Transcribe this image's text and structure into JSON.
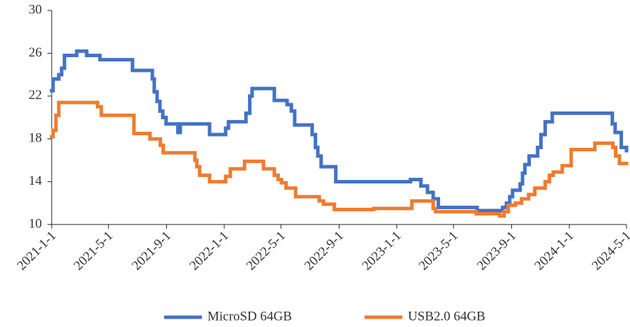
{
  "chart_data": {
    "type": "line",
    "step": "post",
    "xlim": [
      "2021-1-1",
      "2024-5-1"
    ],
    "xticks": [
      "2021-1-1",
      "2021-5-1",
      "2021-9-1",
      "2022-1-1",
      "2022-5-1",
      "2022-9-1",
      "2023-1-1",
      "2023-5-1",
      "2023-9-1",
      "2024-1-1",
      "2024-5-1"
    ],
    "ylim": [
      10,
      30
    ],
    "yticks": [
      10,
      14,
      18,
      22,
      26,
      30
    ],
    "legend": "bottom",
    "series": [
      {
        "name": "MicroSD 64GB",
        "color": "#4472c4",
        "x": [
          "2021-1-1",
          "2021-1-4",
          "2021-1-16",
          "2021-1-22",
          "2021-1-28",
          "2021-2-23",
          "2021-3-16",
          "2021-4-13",
          "2021-6-21",
          "2021-8-2",
          "2021-8-6",
          "2021-8-12",
          "2021-8-18",
          "2021-8-24",
          "2021-8-31",
          "2021-9-25",
          "2021-9-30",
          "2021-12-1",
          "2022-1-4",
          "2022-1-10",
          "2022-2-16",
          "2022-2-24",
          "2022-3-1",
          "2022-4-17",
          "2022-5-14",
          "2022-5-23",
          "2022-5-30",
          "2022-7-6",
          "2022-7-13",
          "2022-7-18",
          "2022-7-25",
          "2022-8-25",
          "2023-1-30",
          "2023-2-21",
          "2023-3-7",
          "2023-3-19",
          "2023-3-30",
          "2023-6-20",
          "2023-8-13",
          "2023-8-21",
          "2023-8-28",
          "2023-9-3",
          "2023-9-19",
          "2023-9-24",
          "2023-9-29",
          "2023-10-8",
          "2023-10-26",
          "2023-11-2",
          "2023-11-11",
          "2023-11-26",
          "2024-4-1",
          "2024-4-7",
          "2024-4-20",
          "2024-5-1"
        ],
        "values": [
          22.5,
          23.6,
          24.0,
          24.6,
          25.8,
          26.2,
          25.8,
          25.4,
          24.4,
          23.6,
          22.4,
          21.5,
          20.6,
          20.0,
          19.4,
          18.6,
          19.4,
          18.4,
          19.0,
          19.6,
          20.4,
          22.0,
          22.7,
          21.6,
          21.2,
          20.6,
          19.3,
          18.4,
          17.2,
          16.4,
          15.4,
          14.0,
          14.2,
          13.6,
          13.0,
          12.4,
          11.6,
          11.3,
          11.6,
          12.0,
          12.6,
          13.2,
          13.8,
          14.8,
          15.6,
          16.4,
          17.2,
          18.4,
          19.6,
          20.4,
          19.4,
          18.6,
          17.2,
          16.9
        ]
      },
      {
        "name": "USB2.0 64GB",
        "color": "#ed7d31",
        "x": [
          "2021-1-1",
          "2021-1-4",
          "2021-1-10",
          "2021-1-16",
          "2021-4-8",
          "2021-4-16",
          "2021-6-24",
          "2021-7-28",
          "2021-8-19",
          "2021-8-25",
          "2021-10-31",
          "2021-11-4",
          "2021-11-10",
          "2021-12-1",
          "2022-1-4",
          "2022-1-14",
          "2022-2-13",
          "2022-3-25",
          "2022-4-17",
          "2022-4-25",
          "2022-5-2",
          "2022-5-12",
          "2022-6-1",
          "2022-7-21",
          "2022-7-30",
          "2022-8-22",
          "2022-11-13",
          "2023-2-2",
          "2023-3-19",
          "2023-3-24",
          "2023-6-18",
          "2023-8-7",
          "2023-8-16",
          "2023-8-25",
          "2023-9-9",
          "2023-9-22",
          "2023-10-7",
          "2023-10-20",
          "2023-11-11",
          "2023-11-20",
          "2023-11-28",
          "2023-12-17",
          "2024-1-5",
          "2024-2-24",
          "2024-4-2",
          "2024-4-8",
          "2024-4-16",
          "2024-5-1"
        ],
        "values": [
          18.2,
          18.8,
          20.2,
          21.4,
          21.0,
          20.2,
          18.5,
          18.0,
          17.4,
          16.7,
          16.0,
          15.4,
          14.6,
          14.0,
          14.5,
          15.2,
          15.9,
          15.2,
          14.6,
          14.2,
          13.9,
          13.4,
          12.6,
          12.2,
          11.9,
          11.4,
          11.5,
          12.2,
          11.5,
          11.2,
          11.0,
          10.8,
          11.2,
          11.8,
          12.0,
          12.4,
          12.8,
          13.4,
          14.0,
          14.6,
          14.9,
          15.5,
          17.0,
          17.6,
          17.2,
          16.4,
          15.7,
          15.7
        ]
      }
    ]
  }
}
